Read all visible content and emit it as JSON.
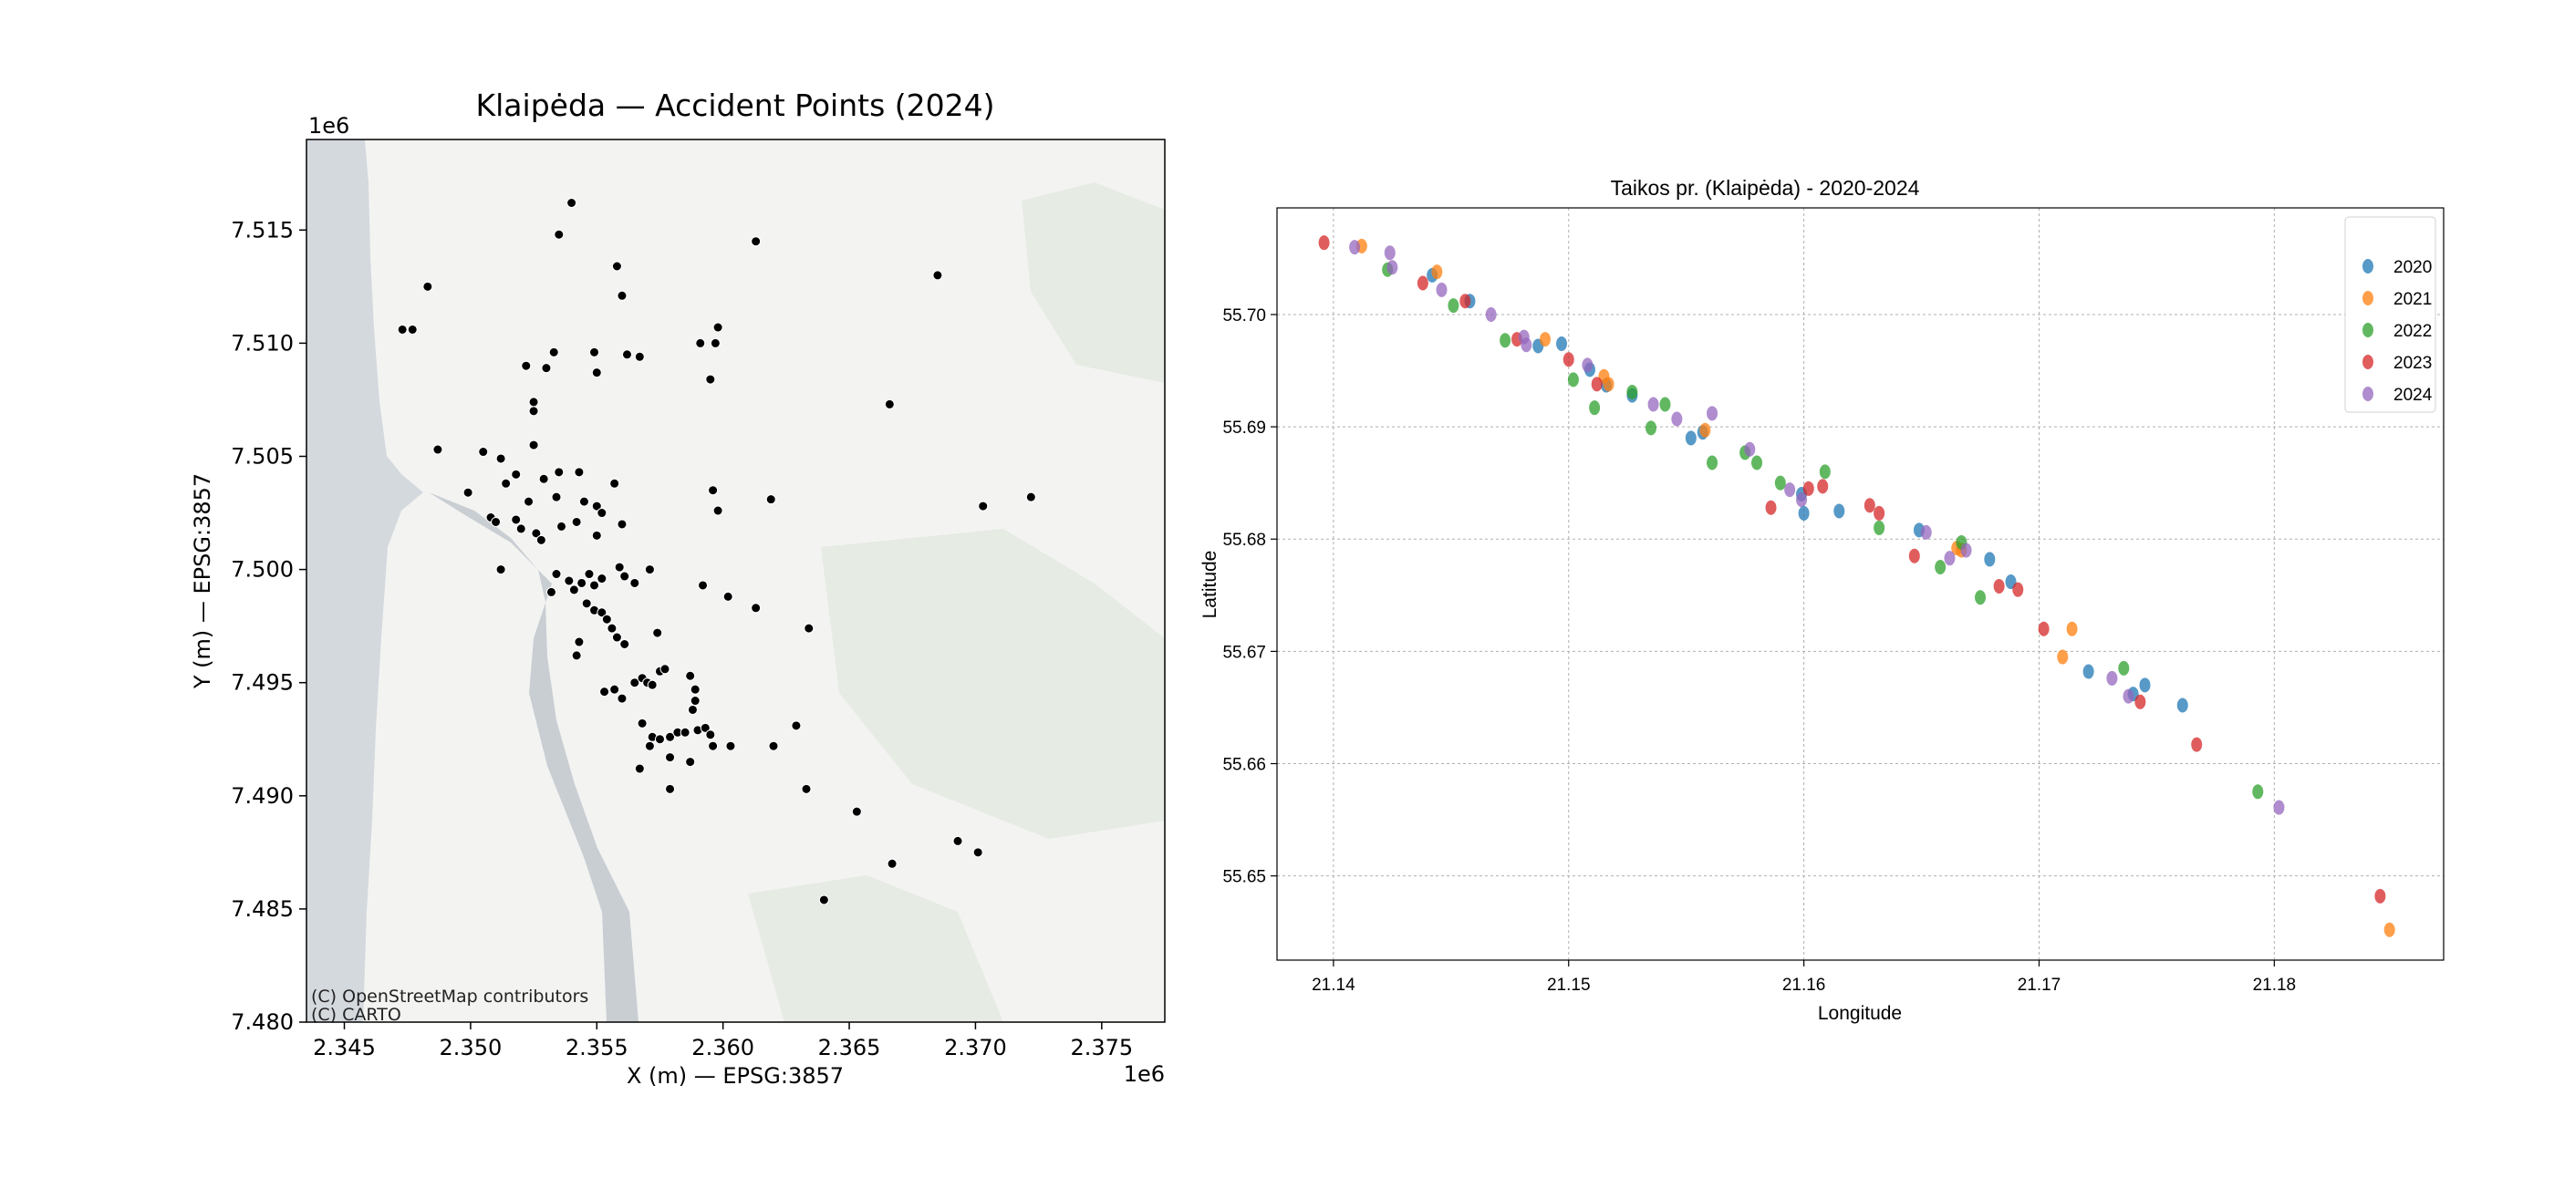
{
  "chart_data": [
    {
      "type": "scatter",
      "title": "Klaipėda — Accident Points (2024)",
      "xlabel": "X (m) — EPSG:3857",
      "ylabel": "Y (m) — EPSG:3857",
      "x_offset_label": "1e6",
      "y_offset_label": "1e6",
      "xlim": [
        2.3435,
        2.3775
      ],
      "ylim": [
        7.48,
        7.519
      ],
      "x_ticks": [
        "2.345",
        "2.350",
        "2.355",
        "2.360",
        "2.365",
        "2.370",
        "2.375"
      ],
      "y_ticks": [
        "7.480",
        "7.485",
        "7.490",
        "7.495",
        "7.500",
        "7.505",
        "7.510",
        "7.515"
      ],
      "attribution": [
        "(C) OpenStreetMap contributors",
        "(C) CARTO"
      ],
      "basemap": {
        "sea": "#d4d9de",
        "land": "#f3f4f2",
        "water": "#c9ced3",
        "green": "#e6ebe3"
      },
      "point_color": "#000000",
      "grid": false,
      "points": [
        [
          2.354,
          7.5162
        ],
        [
          2.3535,
          7.5148
        ],
        [
          2.3613,
          7.5145
        ],
        [
          2.3558,
          7.5134
        ],
        [
          2.3685,
          7.513
        ],
        [
          2.3483,
          7.5125
        ],
        [
          2.356,
          7.5121
        ],
        [
          2.3473,
          7.5106
        ],
        [
          2.3477,
          7.5106
        ],
        [
          2.3591,
          7.51
        ],
        [
          2.3597,
          7.51
        ],
        [
          2.3598,
          7.5107
        ],
        [
          2.3533,
          7.5096
        ],
        [
          2.3549,
          7.5096
        ],
        [
          2.3562,
          7.5095
        ],
        [
          2.3567,
          7.5094
        ],
        [
          2.3522,
          7.509
        ],
        [
          2.353,
          7.5089
        ],
        [
          2.355,
          7.5087
        ],
        [
          2.3595,
          7.5084
        ],
        [
          2.3525,
          7.5074
        ],
        [
          2.3525,
          7.507
        ],
        [
          2.3666,
          7.5073
        ],
        [
          2.3487,
          7.5053
        ],
        [
          2.3505,
          7.5052
        ],
        [
          2.3512,
          7.5049
        ],
        [
          2.3525,
          7.5055
        ],
        [
          2.3518,
          7.5042
        ],
        [
          2.3529,
          7.504
        ],
        [
          2.3535,
          7.5043
        ],
        [
          2.3543,
          7.5043
        ],
        [
          2.3557,
          7.5038
        ],
        [
          2.3514,
          7.5038
        ],
        [
          2.3499,
          7.5034
        ],
        [
          2.3523,
          7.503
        ],
        [
          2.3534,
          7.5032
        ],
        [
          2.3545,
          7.503
        ],
        [
          2.355,
          7.5028
        ],
        [
          2.3552,
          7.5025
        ],
        [
          2.3596,
          7.5035
        ],
        [
          2.3598,
          7.5026
        ],
        [
          2.3619,
          7.5031
        ],
        [
          2.3703,
          7.5028
        ],
        [
          2.3722,
          7.5032
        ],
        [
          2.3508,
          7.5023
        ],
        [
          2.351,
          7.5021
        ],
        [
          2.3518,
          7.5022
        ],
        [
          2.352,
          7.5018
        ],
        [
          2.3526,
          7.5016
        ],
        [
          2.3528,
          7.5013
        ],
        [
          2.3536,
          7.5019
        ],
        [
          2.3542,
          7.5021
        ],
        [
          2.355,
          7.5015
        ],
        [
          2.356,
          7.502
        ],
        [
          2.3512,
          7.5
        ],
        [
          2.3534,
          7.4998
        ],
        [
          2.3539,
          7.4995
        ],
        [
          2.3532,
          7.499
        ],
        [
          2.3541,
          7.4991
        ],
        [
          2.3544,
          7.4994
        ],
        [
          2.3547,
          7.4998
        ],
        [
          2.3549,
          7.4993
        ],
        [
          2.3552,
          7.4996
        ],
        [
          2.3559,
          7.5001
        ],
        [
          2.3561,
          7.4997
        ],
        [
          2.3565,
          7.4994
        ],
        [
          2.3571,
          7.5
        ],
        [
          2.3546,
          7.4985
        ],
        [
          2.3549,
          7.4982
        ],
        [
          2.3552,
          7.4981
        ],
        [
          2.3554,
          7.4978
        ],
        [
          2.3556,
          7.4974
        ],
        [
          2.3558,
          7.497
        ],
        [
          2.3561,
          7.4967
        ],
        [
          2.3543,
          7.4968
        ],
        [
          2.3542,
          7.4962
        ],
        [
          2.3574,
          7.4972
        ],
        [
          2.3592,
          7.4993
        ],
        [
          2.3602,
          7.4988
        ],
        [
          2.3613,
          7.4983
        ],
        [
          2.3634,
          7.4974
        ],
        [
          2.3557,
          7.4947
        ],
        [
          2.3553,
          7.4946
        ],
        [
          2.356,
          7.4943
        ],
        [
          2.3565,
          7.495
        ],
        [
          2.3568,
          7.4952
        ],
        [
          2.357,
          7.495
        ],
        [
          2.3572,
          7.4949
        ],
        [
          2.3575,
          7.4955
        ],
        [
          2.3577,
          7.4956
        ],
        [
          2.3587,
          7.4953
        ],
        [
          2.3589,
          7.4947
        ],
        [
          2.3589,
          7.4942
        ],
        [
          2.3588,
          7.4938
        ],
        [
          2.3568,
          7.4932
        ],
        [
          2.3572,
          7.4926
        ],
        [
          2.3571,
          7.4922
        ],
        [
          2.3575,
          7.4925
        ],
        [
          2.3579,
          7.4926
        ],
        [
          2.3582,
          7.4928
        ],
        [
          2.3585,
          7.4928
        ],
        [
          2.359,
          7.4929
        ],
        [
          2.3593,
          7.493
        ],
        [
          2.3595,
          7.4927
        ],
        [
          2.3596,
          7.4922
        ],
        [
          2.3603,
          7.4922
        ],
        [
          2.362,
          7.4922
        ],
        [
          2.3629,
          7.4931
        ],
        [
          2.3579,
          7.4917
        ],
        [
          2.3587,
          7.4915
        ],
        [
          2.3567,
          7.4912
        ],
        [
          2.3579,
          7.4903
        ],
        [
          2.3633,
          7.4903
        ],
        [
          2.3653,
          7.4893
        ],
        [
          2.3667,
          7.487
        ],
        [
          2.3693,
          7.488
        ],
        [
          2.3701,
          7.4875
        ],
        [
          2.364,
          7.4854
        ]
      ]
    },
    {
      "type": "scatter",
      "title": "Taikos pr. (Klaipėda) - 2020-2024",
      "xlabel": "Longitude",
      "ylabel": "Latitude",
      "xlim": [
        21.1376,
        21.1872
      ],
      "ylim": [
        55.6425,
        55.7095
      ],
      "x_ticks": [
        "21.14",
        "21.15",
        "21.16",
        "21.17",
        "21.18"
      ],
      "y_ticks": [
        "55.65",
        "55.66",
        "55.67",
        "55.68",
        "55.69",
        "55.70"
      ],
      "grid": true,
      "legend": "top-right",
      "series": [
        {
          "name": "2020",
          "color": "#1f77b4",
          "points": [
            [
              21.1442,
              55.7035
            ],
            [
              21.1458,
              55.7012
            ],
            [
              21.1487,
              55.6972
            ],
            [
              21.1497,
              55.6974
            ],
            [
              21.1509,
              55.6951
            ],
            [
              21.1516,
              55.6937
            ],
            [
              21.1527,
              55.6928
            ],
            [
              21.1552,
              55.689
            ],
            [
              21.1557,
              55.6895
            ],
            [
              21.1599,
              55.684
            ],
            [
              21.16,
              55.6823
            ],
            [
              21.1615,
              55.6825
            ],
            [
              21.1649,
              55.6808
            ],
            [
              21.1679,
              55.6782
            ],
            [
              21.1688,
              55.6762
            ],
            [
              21.1721,
              55.6682
            ],
            [
              21.174,
              55.6662
            ],
            [
              21.1745,
              55.667
            ],
            [
              21.1761,
              55.6652
            ]
          ]
        },
        {
          "name": "2021",
          "color": "#ff7f0e",
          "points": [
            [
              21.1412,
              55.7061
            ],
            [
              21.1444,
              55.7038
            ],
            [
              21.149,
              55.6978
            ],
            [
              21.1515,
              55.6945
            ],
            [
              21.1517,
              55.6938
            ],
            [
              21.1558,
              55.6897
            ],
            [
              21.1665,
              55.6792
            ],
            [
              21.1667,
              55.679
            ],
            [
              21.171,
              55.6695
            ],
            [
              21.1714,
              55.672
            ],
            [
              21.1849,
              55.6452
            ]
          ]
        },
        {
          "name": "2022",
          "color": "#2ca02c",
          "points": [
            [
              21.1423,
              55.704
            ],
            [
              21.1451,
              55.7008
            ],
            [
              21.1473,
              55.6977
            ],
            [
              21.1502,
              55.6942
            ],
            [
              21.1511,
              55.6917
            ],
            [
              21.1527,
              55.6931
            ],
            [
              21.1535,
              55.6899
            ],
            [
              21.1541,
              55.692
            ],
            [
              21.1561,
              55.6868
            ],
            [
              21.1575,
              55.6877
            ],
            [
              21.158,
              55.6868
            ],
            [
              21.159,
              55.685
            ],
            [
              21.1609,
              55.686
            ],
            [
              21.1632,
              55.681
            ],
            [
              21.1658,
              55.6775
            ],
            [
              21.1667,
              55.6797
            ],
            [
              21.1675,
              55.6748
            ],
            [
              21.1736,
              55.6685
            ],
            [
              21.1793,
              55.6575
            ]
          ]
        },
        {
          "name": "2023",
          "color": "#d62728",
          "points": [
            [
              21.1396,
              55.7064
            ],
            [
              21.1438,
              55.7028
            ],
            [
              21.1456,
              55.7012
            ],
            [
              21.1478,
              55.6978
            ],
            [
              21.15,
              55.696
            ],
            [
              21.1512,
              55.6938
            ],
            [
              21.1586,
              55.6828
            ],
            [
              21.1602,
              55.6845
            ],
            [
              21.1608,
              55.6847
            ],
            [
              21.1628,
              55.683
            ],
            [
              21.1632,
              55.6823
            ],
            [
              21.1647,
              55.6785
            ],
            [
              21.1683,
              55.6758
            ],
            [
              21.1691,
              55.6755
            ],
            [
              21.1702,
              55.672
            ],
            [
              21.1743,
              55.6655
            ],
            [
              21.1767,
              55.6617
            ],
            [
              21.1845,
              55.6482
            ]
          ]
        },
        {
          "name": "2024",
          "color": "#9467bd",
          "points": [
            [
              21.1409,
              55.706
            ],
            [
              21.1424,
              55.7055
            ],
            [
              21.1425,
              55.7042
            ],
            [
              21.1446,
              55.7022
            ],
            [
              21.1467,
              55.7
            ],
            [
              21.1481,
              55.698
            ],
            [
              21.1482,
              55.6973
            ],
            [
              21.1508,
              55.6955
            ],
            [
              21.1536,
              55.692
            ],
            [
              21.1546,
              55.6907
            ],
            [
              21.1561,
              55.6912
            ],
            [
              21.1577,
              55.688
            ],
            [
              21.1594,
              55.6844
            ],
            [
              21.1599,
              55.6835
            ],
            [
              21.1652,
              55.6806
            ],
            [
              21.1662,
              55.6783
            ],
            [
              21.1669,
              55.679
            ],
            [
              21.1731,
              55.6676
            ],
            [
              21.1738,
              55.666
            ],
            [
              21.1802,
              55.6561
            ]
          ]
        }
      ]
    }
  ]
}
